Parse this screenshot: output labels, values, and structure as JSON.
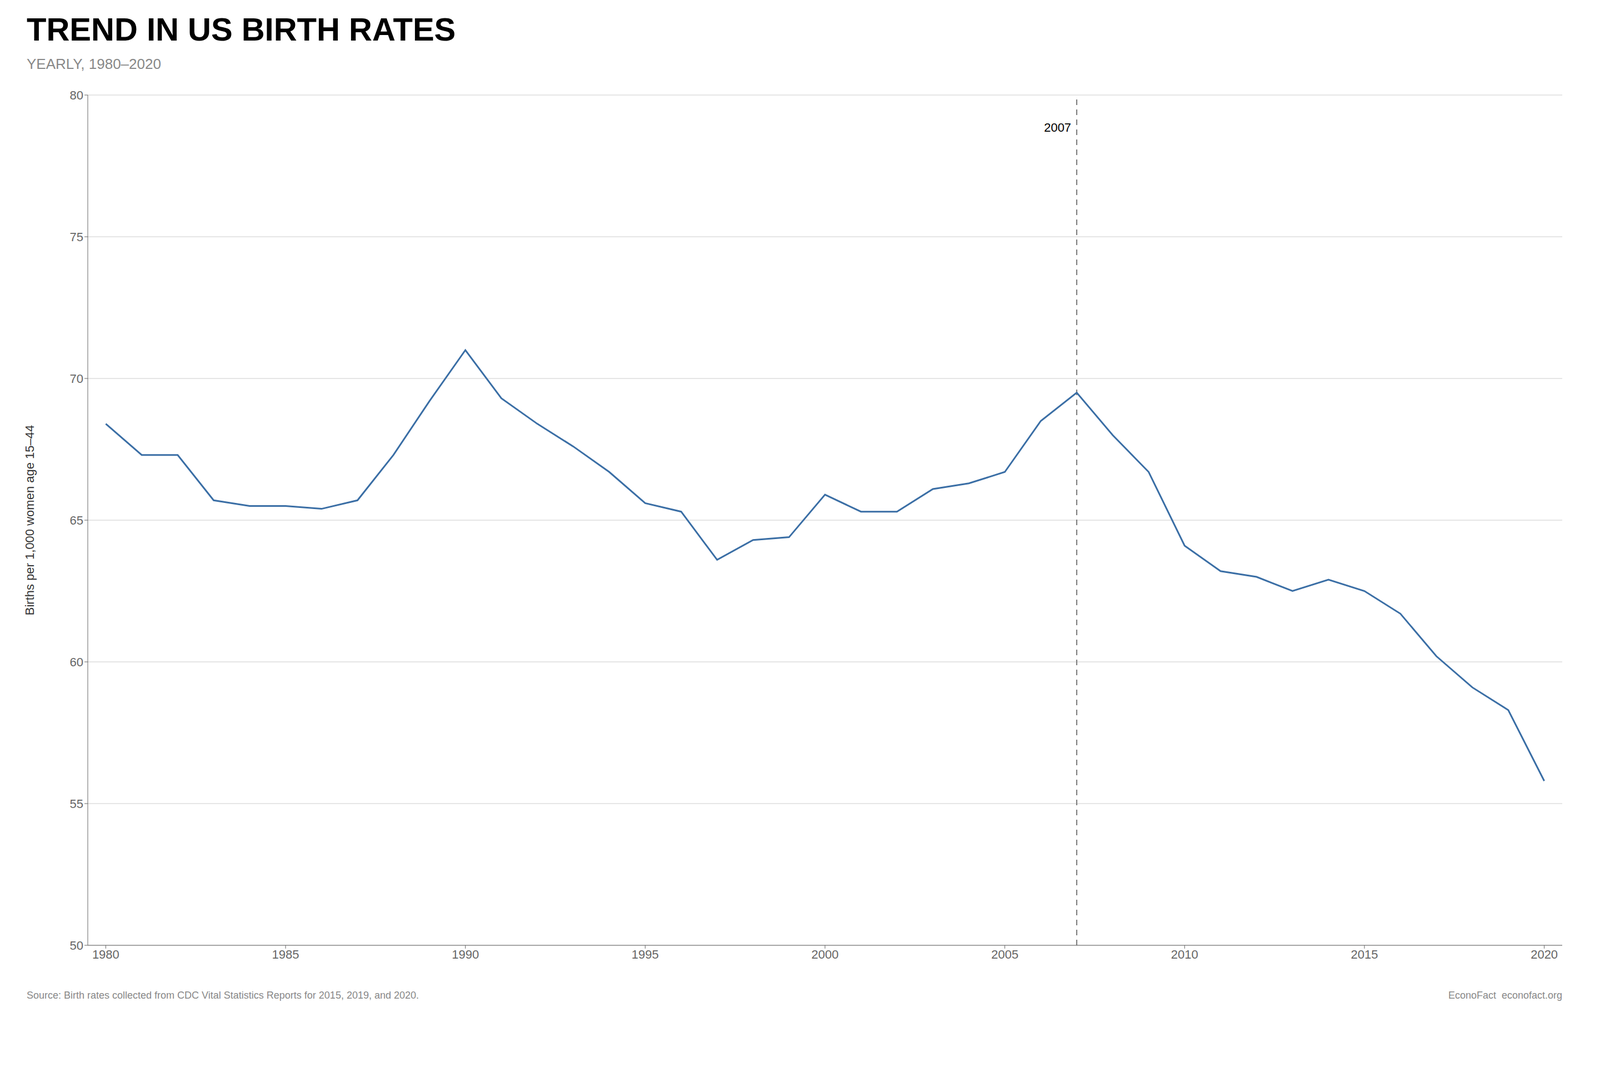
{
  "chart_data": {
    "type": "line",
    "title": "TREND IN US BIRTH RATES",
    "subtitle": "YEARLY, 1980–2020",
    "ylabel": "Births per 1,000 women age 15–44",
    "source": [
      "Source: Birth rates collected from CDC Vital Statistics Reports for 2015, 2019, and 2020.",
      "EconoFact  econofact.org"
    ],
    "x": [
      1980,
      1981,
      1982,
      1983,
      1984,
      1985,
      1986,
      1987,
      1988,
      1989,
      1990,
      1991,
      1992,
      1993,
      1994,
      1995,
      1996,
      1997,
      1998,
      1999,
      2000,
      2001,
      2002,
      2003,
      2004,
      2005,
      2006,
      2007,
      2008,
      2009,
      2010,
      2011,
      2012,
      2013,
      2014,
      2015,
      2016,
      2017,
      2018,
      2019,
      2020
    ],
    "values": [
      68.4,
      67.3,
      67.3,
      65.7,
      65.5,
      65.5,
      65.4,
      65.7,
      67.3,
      69.2,
      71.0,
      69.3,
      68.4,
      67.6,
      66.7,
      65.6,
      65.3,
      63.6,
      64.3,
      64.4,
      65.9,
      65.3,
      65.3,
      66.1,
      66.3,
      66.7,
      68.5,
      69.5,
      68.0,
      66.7,
      64.1,
      63.2,
      63.0,
      62.5,
      62.9,
      62.5,
      61.7,
      60.2,
      59.1,
      58.3,
      55.8
    ],
    "color": "#3a6ea5",
    "xlim": [
      1979.5,
      2020.5
    ],
    "xticks": [
      1980,
      1985,
      1990,
      1995,
      2000,
      2005,
      2010,
      2015,
      2020
    ],
    "ylim": [
      50,
      80
    ],
    "yticks": [
      50,
      55,
      60,
      65,
      70,
      75,
      80
    ],
    "grid": true,
    "annotations": [
      {
        "x": 2007,
        "text": "2007",
        "line_style": "dashed"
      }
    ]
  }
}
